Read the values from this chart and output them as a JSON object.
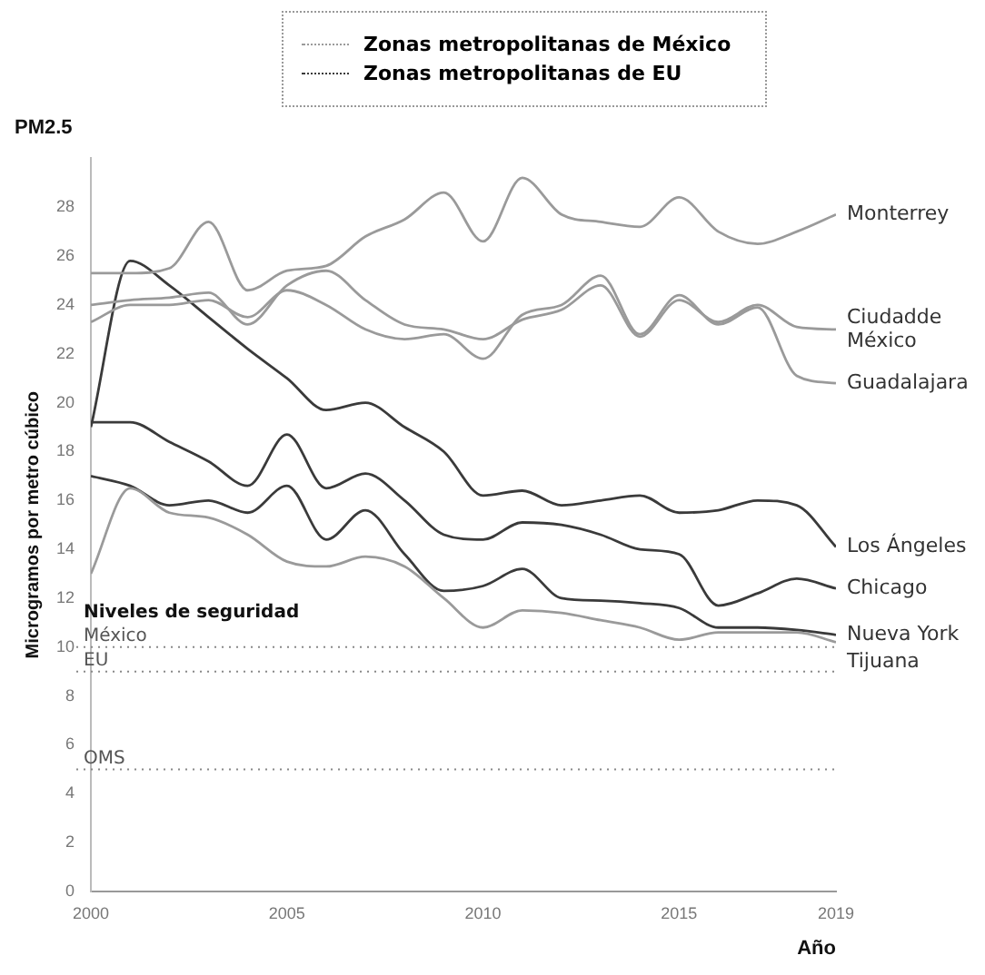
{
  "chart_data": {
    "type": "line",
    "title": "PM2.5",
    "xlabel": "Año",
    "ylabel": "Microgramos por metro cúbico",
    "x": [
      2000,
      2001,
      2002,
      2003,
      2004,
      2005,
      2006,
      2007,
      2008,
      2009,
      2010,
      2011,
      2012,
      2013,
      2014,
      2015,
      2016,
      2017,
      2018,
      2019
    ],
    "xlim": [
      2000,
      2019
    ],
    "xticks": [
      2000,
      2005,
      2010,
      2015,
      2019
    ],
    "ylim": [
      0,
      30
    ],
    "yticks": [
      0,
      2,
      4,
      6,
      8,
      10,
      12,
      14,
      16,
      18,
      20,
      22,
      24,
      26,
      28
    ],
    "grid": false,
    "marker": "none",
    "line_style": "solid",
    "series": [
      {
        "name": "Monterrey",
        "color": "#9a9a9a",
        "values": [
          25.3,
          25.3,
          25.5,
          27.4,
          24.6,
          25.4,
          25.6,
          26.8,
          27.5,
          28.6,
          26.6,
          29.2,
          27.7,
          27.4,
          27.2,
          28.4,
          27.0,
          26.5,
          27.0,
          27.7
        ]
      },
      {
        "name": "Ciudadde México",
        "color": "#9a9a9a",
        "values": [
          24.0,
          24.2,
          24.3,
          24.5,
          23.2,
          24.8,
          25.4,
          24.2,
          23.2,
          23.0,
          22.6,
          23.4,
          23.8,
          24.8,
          22.7,
          24.2,
          23.3,
          24.0,
          23.1,
          23.0
        ]
      },
      {
        "name": "Guadalajara",
        "color": "#9a9a9a",
        "values": [
          23.3,
          24.0,
          24.0,
          24.2,
          23.5,
          24.6,
          24.0,
          23.0,
          22.6,
          22.8,
          21.8,
          23.6,
          24.0,
          25.2,
          22.8,
          24.4,
          23.2,
          23.9,
          21.1,
          20.8
        ]
      },
      {
        "name": "Tijuana",
        "color": "#9a9a9a",
        "values": [
          13.0,
          16.5,
          15.5,
          15.3,
          14.6,
          13.5,
          13.3,
          13.7,
          13.3,
          12.0,
          10.8,
          11.5,
          11.4,
          11.1,
          10.8,
          10.3,
          10.6,
          10.6,
          10.6,
          10.2
        ]
      },
      {
        "name": "Los Ángeles",
        "color": "#3a3a3a",
        "values": [
          19.0,
          25.8,
          24.8,
          23.5,
          22.2,
          21.0,
          19.7,
          20.0,
          19.0,
          18.0,
          16.2,
          16.4,
          15.8,
          16.0,
          16.2,
          15.5,
          15.6,
          16.0,
          15.8,
          14.1
        ]
      },
      {
        "name": "Chicago",
        "color": "#3a3a3a",
        "values": [
          19.2,
          19.2,
          18.4,
          17.6,
          16.6,
          18.7,
          16.5,
          17.1,
          16.0,
          14.6,
          14.4,
          15.1,
          15.0,
          14.6,
          14.0,
          13.8,
          11.7,
          12.2,
          12.8,
          12.4
        ]
      },
      {
        "name": "Nueva York",
        "color": "#3a3a3a",
        "values": [
          17.0,
          16.6,
          15.8,
          16.0,
          15.5,
          16.6,
          14.4,
          15.6,
          13.8,
          12.3,
          12.5,
          13.2,
          12.0,
          11.9,
          11.8,
          11.6,
          10.8,
          10.8,
          10.7,
          10.5
        ]
      }
    ],
    "ref_lines": [
      {
        "axis": "y",
        "value": 10,
        "label": "México",
        "color": "#888888",
        "line_style": "dotted"
      },
      {
        "axis": "y",
        "value": 9,
        "label": "EU",
        "color": "#888888",
        "line_style": "dotted"
      },
      {
        "axis": "y",
        "value": 5,
        "label": "OMS",
        "color": "#888888",
        "line_style": "dotted"
      }
    ],
    "annotations": [
      "Zonas metropolitanas de México",
      "Zonas metropolitanas de EU",
      "Niveles de seguridad"
    ]
  }
}
